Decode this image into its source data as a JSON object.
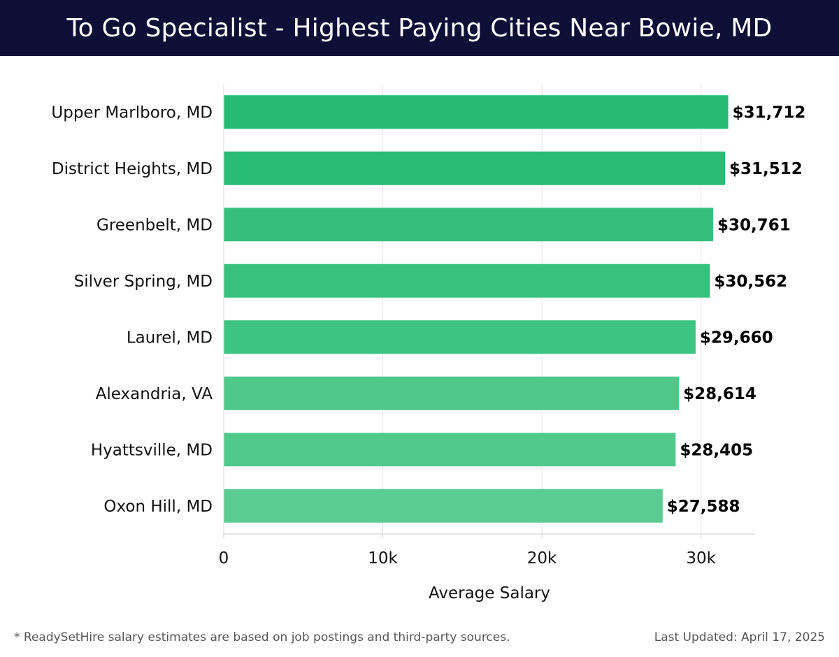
{
  "header": {
    "title": "To Go Specialist - Highest Paying Cities Near Bowie, MD"
  },
  "chart_data": {
    "type": "bar",
    "orientation": "horizontal",
    "title": "To Go Specialist - Highest Paying Cities Near Bowie, MD",
    "xlabel": "Average Salary",
    "ylabel": "",
    "xlim": [
      0,
      33400
    ],
    "xticks": [
      0,
      10000,
      20000,
      30000
    ],
    "xtick_labels": [
      "0",
      "10k",
      "20k",
      "30k"
    ],
    "grid": "vertical",
    "categories": [
      "Upper Marlboro, MD",
      "District Heights, MD",
      "Greenbelt, MD",
      "Silver Spring, MD",
      "Laurel, MD",
      "Alexandria, VA",
      "Hyattsville, MD",
      "Oxon Hill, MD"
    ],
    "values": [
      31712,
      31512,
      30761,
      30562,
      29660,
      28614,
      28405,
      27588
    ],
    "value_labels": [
      "$31,712",
      "$31,512",
      "$30,761",
      "$30,562",
      "$29,660",
      "$28,614",
      "$28,405",
      "$27,588"
    ],
    "colors": [
      "#26bb73",
      "#29bc75",
      "#34c07c",
      "#36c17d",
      "#3ec482",
      "#4ec88b",
      "#50c98c",
      "#5bcc93"
    ]
  },
  "footer": {
    "note": "* ReadySetHire salary estimates are based on job postings and third-party sources.",
    "updated": "Last Updated: April 17, 2025"
  }
}
